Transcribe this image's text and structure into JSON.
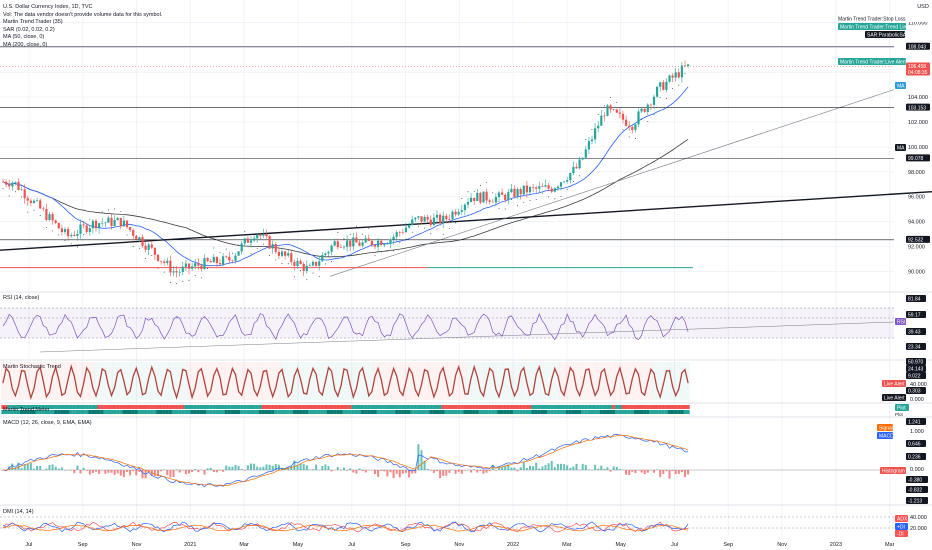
{
  "colors": {
    "background": "#ffffff",
    "grid": "#f0f3fa",
    "axis_text": "#131722",
    "candle_up": "#26a69a",
    "candle_down": "#ef5350",
    "sar": "#131722",
    "ma50": "#2962ff",
    "ma200": "#3c3c3c",
    "rsi": "#7e57c2",
    "macd": "#2962ff",
    "signal": "#ff6d00",
    "stop_loss": "#e91e63",
    "trend_line": "#26a69a"
  },
  "header": {
    "title": "U.S. Dollar Currency Index, 1D, TVC",
    "volume_note": "Vol: The data vendor doesn't provide volume data for this symbol.",
    "indicators": [
      "Martin Trend Trader (35)",
      "SAR (0.02, 0.02, 0.2)",
      "MA (50, close, 0)",
      "MA (200, close, 0)"
    ]
  },
  "panels": {
    "rsi": "RSI (14, close)",
    "stoch": "Martin Stochastic Trend",
    "trend_meter": "Martin Trend Meter",
    "macd": "MACD (12, 26, close, 9, EMA, EMA)",
    "dmi": "DMI (14, 14)"
  },
  "chart_data": [
    {
      "type": "candlestick",
      "title": "U.S. Dollar Currency Index, 1D, TVC",
      "currency": "USD",
      "x_ticks": [
        "Jul",
        "Sep",
        "Nov",
        "2021",
        "Mar",
        "May",
        "Jul",
        "Sep",
        "Nov",
        "2022",
        "Mar",
        "May",
        "Jul",
        "Sep",
        "Nov",
        "2023",
        "Mar"
      ],
      "y_ticks": [
        90.0,
        92.0,
        94.0,
        96.0,
        98.0,
        100.0,
        102.0,
        104.0,
        106.0,
        108.0,
        110.0
      ],
      "ylim": [
        88.5,
        111.0
      ],
      "close_path_monthly": [
        [
          "2020-06",
          97.2
        ],
        [
          "2020-07",
          95.0
        ],
        [
          "2020-08",
          92.8
        ],
        [
          "2020-09",
          93.9
        ],
        [
          "2020-10",
          94.0
        ],
        [
          "2020-11",
          92.0
        ],
        [
          "2020-12",
          89.9
        ],
        [
          "2021-01",
          90.6
        ],
        [
          "2021-02",
          90.9
        ],
        [
          "2021-03",
          93.2
        ],
        [
          "2021-04",
          91.3
        ],
        [
          "2021-05",
          90.1
        ],
        [
          "2021-06",
          92.4
        ],
        [
          "2021-07",
          92.2
        ],
        [
          "2021-08",
          92.6
        ],
        [
          "2021-09",
          94.2
        ],
        [
          "2021-10",
          94.1
        ],
        [
          "2021-11",
          96.0
        ],
        [
          "2021-12",
          95.9
        ],
        [
          "2022-01",
          96.5
        ],
        [
          "2022-02",
          96.7
        ],
        [
          "2022-03",
          98.4
        ],
        [
          "2022-04",
          103.0
        ],
        [
          "2022-05",
          101.8
        ],
        [
          "2022-06",
          104.7
        ],
        [
          "2022-07",
          106.4
        ]
      ],
      "price_labels": [
        {
          "text": "Martin Trend Trader:Stop Loss",
          "value": 109.8
        },
        {
          "text": "Martin Trend Trader:Trend Line",
          "value": 109.2
        },
        {
          "text": "SAR:ParabolicSAR",
          "value": 108.7
        },
        {
          "text": "108.043",
          "value": 108.043
        },
        {
          "text": "106.458",
          "value": 106.458
        },
        {
          "text": "04:08:35",
          "value": 105.9
        },
        {
          "text": "Martin Trend Trader:Live Alert",
          "value": 106.5
        },
        {
          "text": "MA",
          "value": 104.5
        },
        {
          "text": "103.153",
          "value": 103.153
        },
        {
          "text": "MA",
          "value": 99.4
        },
        {
          "text": "99.078",
          "value": 99.078
        },
        {
          "text": "92.532",
          "value": 92.532
        }
      ],
      "horizontal_levels": [
        108.043,
        103.153,
        99.078,
        92.532,
        90.3
      ]
    },
    {
      "type": "line",
      "title": "RSI (14, close)",
      "levels_labels": [
        "81.84",
        "59.17",
        "RSI",
        "39.43",
        "23.34"
      ]
    },
    {
      "type": "line",
      "title": "Martin Stochastic Trend",
      "levels_labels": [
        "50.970",
        "24.143",
        "9.022",
        "40.000",
        "0.303",
        "0.000"
      ],
      "tags": [
        "Live Alert",
        "Live Alert"
      ]
    },
    {
      "type": "bar",
      "title": "Martin Trend Meter",
      "tags": [
        "Plot",
        "Plot"
      ]
    },
    {
      "type": "line",
      "title": "MACD (12, 26, close, 9, EMA, EMA)",
      "levels_labels": [
        "1.241",
        "Signal",
        "MACD",
        "1.000",
        "0.646",
        "0.236",
        "0.000",
        "Histogram",
        "-0.380",
        "-0.832",
        "-1.213"
      ]
    },
    {
      "type": "line",
      "title": "DMI (14, 14)",
      "levels_labels": [
        "40.000",
        "20.000",
        "ADX",
        "+DI",
        "-DI"
      ]
    }
  ]
}
